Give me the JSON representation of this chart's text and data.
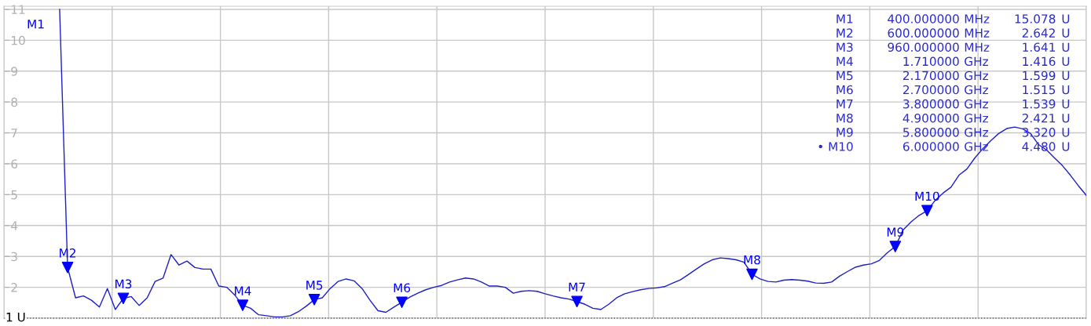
{
  "chart_data": {
    "type": "line",
    "categories": [
      null,
      null,
      null,
      null,
      null,
      null,
      null,
      null,
      null,
      null,
      null,
      null,
      null,
      null,
      null,
      null,
      null,
      null,
      null,
      null,
      null,
      null,
      null,
      null,
      null,
      null,
      null,
      null,
      null,
      null,
      null,
      null,
      null,
      null,
      null,
      null,
      null,
      null,
      null,
      null,
      null,
      null,
      null,
      null,
      null,
      null,
      null,
      null,
      null,
      null,
      null,
      null,
      null,
      null,
      null,
      null,
      null,
      null,
      null,
      null,
      null,
      null,
      null,
      null,
      null,
      null,
      null,
      null,
      null,
      null,
      null,
      null,
      null,
      null,
      null,
      null,
      null,
      null,
      null,
      null,
      null,
      null,
      null,
      null,
      null,
      null,
      null,
      null,
      null,
      null,
      null,
      null,
      null,
      null,
      null,
      null,
      null,
      null,
      null,
      null,
      null,
      null,
      null,
      null,
      null,
      null,
      null,
      null,
      null,
      null,
      null,
      null,
      null,
      null,
      null,
      null,
      null,
      null,
      null,
      null,
      null,
      null,
      null,
      null,
      null,
      null,
      null,
      null,
      null,
      null,
      null,
      null,
      null,
      null,
      null,
      null,
      null
    ],
    "series": [
      {
        "color": "#1f1fc8",
        "values": [
          null,
          null,
          null,
          null,
          null,
          null,
          null,
          11,
          2.642,
          1.66,
          1.72,
          1.58,
          1.36,
          1.96,
          1.28,
          1.641,
          1.7,
          1.41,
          1.66,
          2.19,
          2.3,
          3.06,
          2.72,
          2.85,
          2.64,
          2.59,
          2.59,
          2.04,
          2.0,
          1.75,
          1.416,
          1.32,
          1.11,
          1.08,
          1.04,
          1.04,
          1.08,
          1.21,
          1.39,
          1.599,
          1.66,
          1.96,
          2.19,
          2.27,
          2.21,
          1.96,
          1.58,
          1.24,
          1.19,
          1.36,
          1.515,
          1.68,
          1.81,
          1.92,
          2.0,
          2.06,
          2.17,
          2.24,
          2.3,
          2.27,
          2.17,
          2.04,
          2.04,
          2.0,
          1.81,
          1.87,
          1.89,
          1.87,
          1.79,
          1.72,
          1.66,
          1.62,
          1.539,
          1.45,
          1.32,
          1.28,
          1.45,
          1.66,
          1.79,
          1.86,
          1.92,
          1.96,
          1.98,
          2.02,
          2.13,
          2.24,
          2.41,
          2.59,
          2.76,
          2.89,
          2.95,
          2.93,
          2.89,
          2.81,
          2.421,
          2.27,
          2.19,
          2.17,
          2.23,
          2.25,
          2.23,
          2.2,
          2.14,
          2.13,
          2.17,
          2.36,
          2.51,
          2.65,
          2.72,
          2.76,
          2.87,
          3.12,
          3.32,
          3.86,
          4.12,
          4.33,
          4.48,
          4.81,
          5.05,
          5.24,
          5.63,
          5.83,
          6.19,
          6.49,
          6.75,
          6.98,
          7.14,
          7.19,
          7.13,
          6.98,
          6.62,
          6.45,
          6.19,
          5.94,
          5.63,
          5.29,
          4.98
        ]
      },
      {
        "type": "scatter",
        "color": "#0000ff",
        "marker": "triangle",
        "values": [
          null,
          null,
          null,
          null,
          null,
          null,
          null,
          null,
          2.642,
          null,
          null,
          null,
          null,
          null,
          null,
          1.641,
          null,
          null,
          null,
          null,
          null,
          null,
          null,
          null,
          null,
          null,
          null,
          null,
          null,
          null,
          1.416,
          null,
          null,
          null,
          null,
          null,
          null,
          null,
          null,
          1.599,
          null,
          null,
          null,
          null,
          null,
          null,
          null,
          null,
          null,
          null,
          1.515,
          null,
          null,
          null,
          null,
          null,
          null,
          null,
          null,
          null,
          null,
          null,
          null,
          null,
          null,
          null,
          null,
          null,
          null,
          null,
          null,
          null,
          1.539,
          null,
          null,
          null,
          null,
          null,
          null,
          null,
          null,
          null,
          null,
          null,
          null,
          null,
          null,
          null,
          null,
          null,
          null,
          null,
          null,
          null,
          2.421,
          null,
          null,
          null,
          null,
          null,
          null,
          null,
          null,
          null,
          null,
          null,
          null,
          null,
          null,
          null,
          null,
          null,
          3.32,
          null,
          null,
          null,
          4.48,
          null,
          null,
          null,
          null,
          null,
          null,
          null,
          null,
          null,
          null,
          null,
          null,
          null,
          null,
          null,
          null,
          null,
          null,
          null,
          null
        ],
        "value_labels": [
          null,
          null,
          null,
          null,
          "M1",
          null,
          null,
          null,
          "M2",
          null,
          null,
          null,
          null,
          null,
          null,
          "M3",
          null,
          null,
          null,
          null,
          null,
          null,
          null,
          null,
          null,
          null,
          null,
          null,
          null,
          null,
          "M4",
          null,
          null,
          null,
          null,
          null,
          null,
          null,
          null,
          "M5",
          null,
          null,
          null,
          null,
          null,
          null,
          null,
          null,
          null,
          null,
          "M6",
          null,
          null,
          null,
          null,
          null,
          null,
          null,
          null,
          null,
          null,
          null,
          null,
          null,
          null,
          null,
          null,
          null,
          null,
          null,
          null,
          null,
          "M7",
          null,
          null,
          null,
          null,
          null,
          null,
          null,
          null,
          null,
          null,
          null,
          null,
          null,
          null,
          null,
          null,
          null,
          null,
          null,
          null,
          null,
          "M8",
          null,
          null,
          null,
          null,
          null,
          null,
          null,
          null,
          null,
          null,
          null,
          null,
          null,
          null,
          null,
          null,
          null,
          "M9",
          null,
          null,
          null,
          "M10",
          null,
          null,
          null,
          null,
          null,
          null,
          null,
          null,
          null,
          null,
          null,
          null,
          null,
          null,
          null,
          null,
          null,
          null,
          null,
          null
        ]
      }
    ],
    "ylim": [
      1,
      11.1
    ],
    "yticks": [
      {
        "value": 1,
        "label": null
      },
      2,
      3,
      4,
      5,
      6,
      7,
      8,
      9,
      10,
      11
    ],
    "grid": true,
    "ref_lines": [
      {
        "axis": "y",
        "value": 1,
        "label": "1 U",
        "color": "#000000",
        "line_style": "dotted"
      }
    ],
    "annotations": [
      "M1 400.000000 MHz 15.078 U",
      "M2 600.000000 MHz 2.642 U",
      "M3 960.000000 MHz 1.641 U",
      "M4 1.710000 GHz 1.416 U",
      "M5 2.170000 GHz 1.599 U",
      "M6 2.700000 GHz 1.515 U",
      "M7 3.800000 GHz 1.539 U",
      "M8 4.900000 GHz 2.421 U",
      "M9 5.800000 GHz 3.320 U",
      "• M10 6.000000 GHz 4.480 U"
    ]
  }
}
